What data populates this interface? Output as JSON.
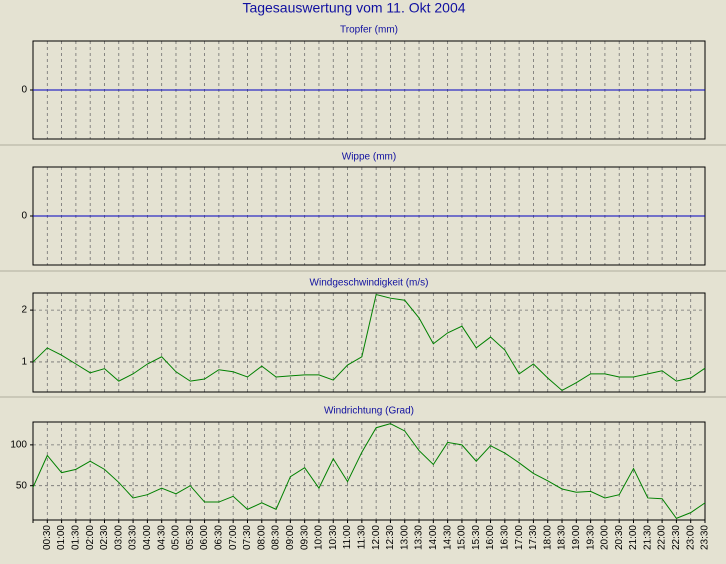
{
  "title": "Tagesauswertung vom 11. Okt 2004",
  "chart_data": [
    {
      "type": "line",
      "title": "Tropfer (mm)",
      "ylim": [
        -1,
        1
      ],
      "yticks": [
        0
      ],
      "xgrid": true,
      "ygrid": false,
      "series": [
        {
          "color": "#0000c0",
          "values": [
            0,
            0,
            0,
            0,
            0,
            0,
            0,
            0,
            0,
            0,
            0,
            0,
            0,
            0,
            0,
            0,
            0,
            0,
            0,
            0,
            0,
            0,
            0,
            0,
            0,
            0,
            0,
            0,
            0,
            0,
            0,
            0,
            0,
            0,
            0,
            0,
            0,
            0,
            0,
            0,
            0,
            0,
            0,
            0,
            0,
            0,
            0,
            0
          ]
        }
      ]
    },
    {
      "type": "line",
      "title": "Wippe (mm)",
      "ylim": [
        -1,
        1
      ],
      "yticks": [
        0
      ],
      "xgrid": true,
      "ygrid": false,
      "series": [
        {
          "color": "#0000c0",
          "values": [
            0,
            0,
            0,
            0,
            0,
            0,
            0,
            0,
            0,
            0,
            0,
            0,
            0,
            0,
            0,
            0,
            0,
            0,
            0,
            0,
            0,
            0,
            0,
            0,
            0,
            0,
            0,
            0,
            0,
            0,
            0,
            0,
            0,
            0,
            0,
            0,
            0,
            0,
            0,
            0,
            0,
            0,
            0,
            0,
            0,
            0,
            0,
            0
          ]
        }
      ]
    },
    {
      "type": "line",
      "title": "Windgeschwindigkeit (m/s)",
      "ylim": [
        0.42,
        2.33
      ],
      "yticks": [
        1,
        2
      ],
      "xgrid": true,
      "ygrid": true,
      "series": [
        {
          "color": "#008000",
          "values": [
            1.0,
            1.27,
            1.13,
            0.96,
            0.79,
            0.87,
            0.63,
            0.77,
            0.96,
            1.1,
            0.81,
            0.63,
            0.67,
            0.85,
            0.81,
            0.71,
            0.92,
            0.71,
            0.73,
            0.75,
            0.75,
            0.65,
            0.94,
            1.1,
            2.3,
            2.23,
            2.19,
            1.85,
            1.35,
            1.56,
            1.69,
            1.27,
            1.48,
            1.23,
            0.77,
            0.96,
            0.69,
            0.45,
            0.6,
            0.77,
            0.77,
            0.71,
            0.71,
            0.77,
            0.83,
            0.63,
            0.69,
            0.88
          ]
        }
      ]
    },
    {
      "type": "line",
      "title": "Windrichtung (Grad)",
      "ylim": [
        8,
        128
      ],
      "yticks": [
        50,
        100
      ],
      "xgrid": true,
      "ygrid": true,
      "categories": [
        null,
        "00:30",
        "01:00",
        "01:30",
        "02:00",
        "02:30",
        "03:00",
        "03:30",
        "04:00",
        "04:30",
        "05:00",
        "05:30",
        "06:00",
        "06:30",
        "07:00",
        "07:30",
        "08:00",
        "08:30",
        "09:00",
        "09:30",
        "10:00",
        "10:30",
        "11:00",
        "11:30",
        "12:00",
        "12:30",
        "13:00",
        "13:30",
        "14:00",
        "14:30",
        "15:00",
        "15:30",
        "16:00",
        "16:30",
        "17:00",
        "17:30",
        "18:00",
        "18:30",
        "19:00",
        "19:30",
        "20:00",
        "20:30",
        "21:00",
        "21:30",
        "22:00",
        "22:30",
        "23:00",
        "23:30"
      ],
      "series": [
        {
          "color": "#008000",
          "values": [
            48,
            87,
            66,
            70,
            80,
            70,
            54,
            35,
            39,
            47,
            40,
            50,
            30,
            30,
            37,
            21,
            29,
            21,
            61,
            72,
            47,
            83,
            55,
            91,
            121,
            126,
            117,
            93,
            76,
            103,
            100,
            80,
            99,
            90,
            78,
            65,
            56,
            46,
            42,
            43,
            35,
            39,
            71,
            35,
            34,
            10,
            17,
            29
          ]
        }
      ]
    }
  ]
}
